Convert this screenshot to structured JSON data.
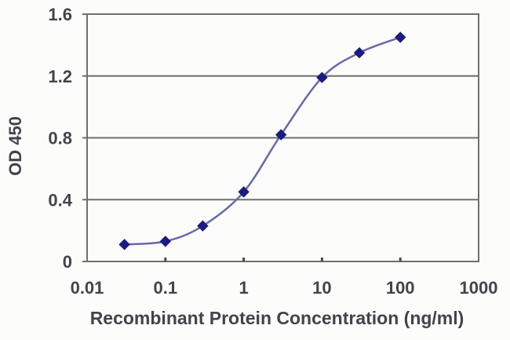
{
  "chart_data": {
    "type": "line",
    "title": "",
    "xlabel": "Recombinant Protein Concentration (ng/ml)",
    "ylabel": "OD 450",
    "x_scale": "log",
    "xlim": [
      0.01,
      1000
    ],
    "ylim": [
      0,
      1.6
    ],
    "x_tick_values": [
      0.01,
      0.1,
      1,
      10,
      100,
      1000
    ],
    "x_tick_labels": [
      "0.01",
      "0.1",
      "1",
      "10",
      "100",
      "1000"
    ],
    "y_tick_values": [
      0,
      0.4,
      0.8,
      1.2,
      1.6
    ],
    "y_tick_labels": [
      "0",
      "0.4",
      "0.8",
      "1.2",
      "1.6"
    ],
    "grid": "horizontal",
    "legend": "none",
    "marker": "diamond",
    "series": [
      {
        "name": "",
        "x": [
          0.03,
          0.1,
          0.3,
          1,
          3,
          10,
          30,
          100
        ],
        "y": [
          0.11,
          0.13,
          0.23,
          0.45,
          0.82,
          1.19,
          1.35,
          1.45
        ]
      }
    ],
    "colors": {
      "line": "#6868ac",
      "marker": "#1b1b80",
      "grid": "#6f6f6f",
      "axis": "#6f6f6f",
      "text": "#43434a",
      "background": "#fcfcfa"
    }
  }
}
